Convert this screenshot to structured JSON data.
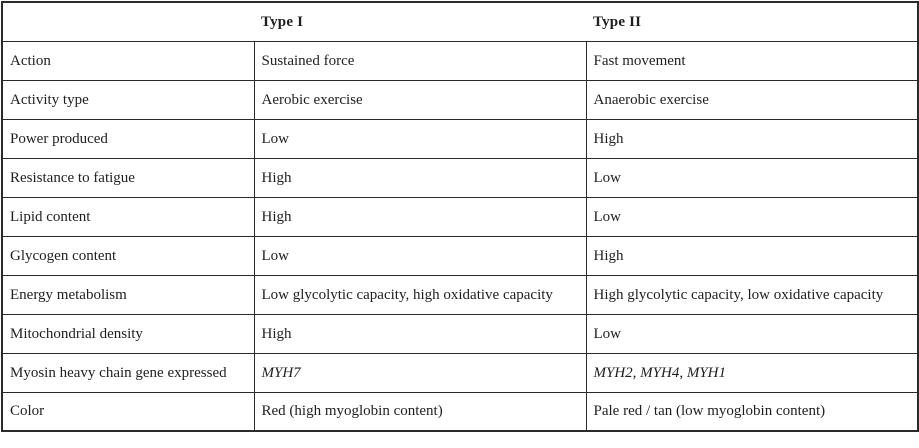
{
  "table": {
    "columns": {
      "header_blank": "",
      "type1": "Type I",
      "type2": "Type II"
    },
    "rows": [
      {
        "label": "Action",
        "type1": "Sustained force",
        "type2": "Fast movement"
      },
      {
        "label": "Activity type",
        "type1": "Aerobic exercise",
        "type2": "Anaerobic exercise"
      },
      {
        "label": "Power produced",
        "type1": "Low",
        "type2": "High"
      },
      {
        "label": "Resistance to fatigue",
        "type1": "High",
        "type2": "Low"
      },
      {
        "label": "Lipid content",
        "type1": "High",
        "type2": "Low"
      },
      {
        "label": "Glycogen content",
        "type1": "Low",
        "type2": "High"
      },
      {
        "label": "Energy metabolism",
        "type1": "Low glycolytic capacity, high oxidative capacity",
        "type2": "High glycolytic capacity, low oxidative capacity"
      },
      {
        "label": "Mitochondrial density",
        "type1": "High",
        "type2": "Low"
      },
      {
        "label": "Myosin heavy chain gene expressed",
        "type1": "MYH7",
        "type2": "MYH2, MYH4, MYH1",
        "italic": true
      },
      {
        "label": "Color",
        "type1": "Red (high myoglobin content)",
        "type2": "Pale red / tan (low myoglobin content)"
      }
    ],
    "style": {
      "border_color": "#2b2b2b",
      "text_color": "#1f1f1f",
      "background_color": "#ffffff"
    }
  }
}
